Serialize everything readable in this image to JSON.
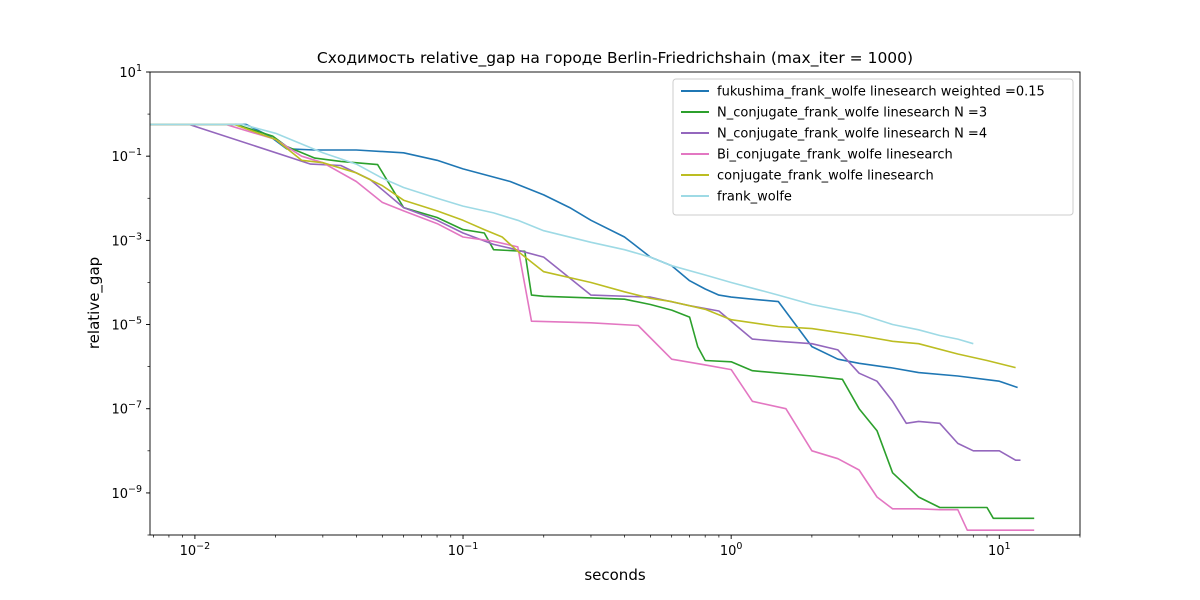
{
  "chart_data": {
    "type": "line",
    "title": "Сходимость relative_gap на городе Berlin-Friedrichshain  (max_iter = 1000)",
    "xlabel": "seconds",
    "ylabel": "relative_gap",
    "xscale": "log",
    "yscale": "log",
    "xlim": [
      0.0068,
      20
    ],
    "ylim": [
      1e-10,
      10
    ],
    "xticks": [
      {
        "value": 0.01,
        "label": "10",
        "exp": "−2"
      },
      {
        "value": 0.1,
        "label": "10",
        "exp": "−1"
      },
      {
        "value": 1,
        "label": "10",
        "exp": "0"
      },
      {
        "value": 10,
        "label": "10",
        "exp": "1"
      }
    ],
    "yticks": [
      {
        "value": 10,
        "label": "10",
        "exp": "1"
      },
      {
        "value": 0.1,
        "label": "10",
        "exp": "−1"
      },
      {
        "value": 0.001,
        "label": "10",
        "exp": "−3"
      },
      {
        "value": 1e-05,
        "label": "10",
        "exp": "−5"
      },
      {
        "value": 1e-07,
        "label": "10",
        "exp": "−7"
      },
      {
        "value": 1e-09,
        "label": "10",
        "exp": "−9"
      }
    ],
    "legend_position": "top-right",
    "grid": false,
    "series": [
      {
        "name": "fukushima_frank_wolfe linesearch weighted =0.15",
        "color": "#1f77b4",
        "points": [
          [
            0.0068,
            0.57
          ],
          [
            0.0155,
            0.57
          ],
          [
            0.019,
            0.3
          ],
          [
            0.022,
            0.15
          ],
          [
            0.028,
            0.14
          ],
          [
            0.04,
            0.14
          ],
          [
            0.06,
            0.12
          ],
          [
            0.08,
            0.08
          ],
          [
            0.1,
            0.05
          ],
          [
            0.15,
            0.025
          ],
          [
            0.2,
            0.012
          ],
          [
            0.25,
            0.006
          ],
          [
            0.3,
            0.003
          ],
          [
            0.4,
            0.0012
          ],
          [
            0.5,
            0.0004
          ],
          [
            0.6,
            0.00025
          ],
          [
            0.7,
            0.00011
          ],
          [
            0.8,
            7e-05
          ],
          [
            0.9,
            5e-05
          ],
          [
            1.0,
            4.5e-05
          ],
          [
            1.2,
            4e-05
          ],
          [
            1.5,
            3.5e-05
          ],
          [
            2.0,
            3e-06
          ],
          [
            2.5,
            1.5e-06
          ],
          [
            3.0,
            1.2e-06
          ],
          [
            4.0,
            9.3e-07
          ],
          [
            5.0,
            7.2e-07
          ],
          [
            7.0,
            6e-07
          ],
          [
            10.0,
            4.5e-07
          ],
          [
            11.7,
            3.2e-07
          ]
        ]
      },
      {
        "name": "N_conjugate_frank_wolfe linesearch N =3",
        "color": "#2ca02c",
        "points": [
          [
            0.0068,
            0.57
          ],
          [
            0.0142,
            0.57
          ],
          [
            0.0195,
            0.3
          ],
          [
            0.022,
            0.17
          ],
          [
            0.028,
            0.09
          ],
          [
            0.035,
            0.075
          ],
          [
            0.048,
            0.063
          ],
          [
            0.06,
            0.006
          ],
          [
            0.08,
            0.0035
          ],
          [
            0.1,
            0.0018
          ],
          [
            0.12,
            0.0015
          ],
          [
            0.13,
            0.0006
          ],
          [
            0.17,
            0.00055
          ],
          [
            0.18,
            5e-05
          ],
          [
            0.2,
            4.7e-05
          ],
          [
            0.3,
            4.3e-05
          ],
          [
            0.4,
            4e-05
          ],
          [
            0.5,
            3e-05
          ],
          [
            0.6,
            2.2e-05
          ],
          [
            0.7,
            1.5e-05
          ],
          [
            0.75,
            3e-06
          ],
          [
            0.8,
            1.4e-06
          ],
          [
            1.0,
            1.3e-06
          ],
          [
            1.2,
            8e-07
          ],
          [
            2.0,
            6e-07
          ],
          [
            2.6,
            5e-07
          ],
          [
            3.0,
            1e-07
          ],
          [
            3.5,
            3e-08
          ],
          [
            4.0,
            3e-09
          ],
          [
            5.0,
            8e-10
          ],
          [
            6.0,
            4.5e-10
          ],
          [
            9.0,
            4.5e-10
          ],
          [
            9.5,
            2.5e-10
          ],
          [
            13.5,
            2.5e-10
          ]
        ]
      },
      {
        "name": "N_conjugate_frank_wolfe linesearch N =4",
        "color": "#9467bd",
        "points": [
          [
            0.0068,
            0.57
          ],
          [
            0.0095,
            0.57
          ],
          [
            0.027,
            0.065
          ],
          [
            0.035,
            0.06
          ],
          [
            0.045,
            0.028
          ],
          [
            0.06,
            0.006
          ],
          [
            0.08,
            0.003
          ],
          [
            0.1,
            0.0015
          ],
          [
            0.13,
            0.0008
          ],
          [
            0.15,
            0.00065
          ],
          [
            0.2,
            0.0004
          ],
          [
            0.3,
            5e-05
          ],
          [
            0.5,
            4.5e-05
          ],
          [
            0.7,
            2.8e-05
          ],
          [
            0.9,
            2.1e-05
          ],
          [
            1.2,
            4.5e-06
          ],
          [
            1.5,
            4e-06
          ],
          [
            2.0,
            3.5e-06
          ],
          [
            2.5,
            2.5e-06
          ],
          [
            3.0,
            7e-07
          ],
          [
            3.5,
            4.5e-07
          ],
          [
            4.0,
            1.5e-07
          ],
          [
            4.5,
            4.5e-08
          ],
          [
            5.0,
            5e-08
          ],
          [
            6.0,
            4.5e-08
          ],
          [
            7.0,
            1.5e-08
          ],
          [
            8.0,
            1e-08
          ],
          [
            10.0,
            1e-08
          ],
          [
            11.5,
            6e-09
          ],
          [
            12.0,
            6e-09
          ]
        ]
      },
      {
        "name": "Bi_conjugate_frank_wolfe linesearch",
        "color": "#e377c2",
        "points": [
          [
            0.0068,
            0.57
          ],
          [
            0.013,
            0.57
          ],
          [
            0.02,
            0.25
          ],
          [
            0.025,
            0.1
          ],
          [
            0.03,
            0.07
          ],
          [
            0.04,
            0.025
          ],
          [
            0.05,
            0.008
          ],
          [
            0.06,
            0.005
          ],
          [
            0.08,
            0.0025
          ],
          [
            0.1,
            0.0012
          ],
          [
            0.13,
            0.00095
          ],
          [
            0.16,
            0.0007
          ],
          [
            0.18,
            1.2e-05
          ],
          [
            0.3,
            1.1e-05
          ],
          [
            0.45,
            9.5e-06
          ],
          [
            0.6,
            1.5e-06
          ],
          [
            0.8,
            1.1e-06
          ],
          [
            1.0,
            8.5e-07
          ],
          [
            1.2,
            1.5e-07
          ],
          [
            1.6,
            1e-07
          ],
          [
            2.0,
            1e-08
          ],
          [
            2.5,
            6.5e-09
          ],
          [
            3.0,
            3.5e-09
          ],
          [
            3.5,
            8e-10
          ],
          [
            4.0,
            4.2e-10
          ],
          [
            5.0,
            4.2e-10
          ],
          [
            6.0,
            4e-10
          ],
          [
            7.0,
            4e-10
          ],
          [
            7.6,
            1.3e-10
          ],
          [
            13.5,
            1.3e-10
          ]
        ]
      },
      {
        "name": "conjugate_frank_wolfe linesearch",
        "color": "#bcbd22",
        "points": [
          [
            0.0068,
            0.57
          ],
          [
            0.014,
            0.57
          ],
          [
            0.02,
            0.25
          ],
          [
            0.025,
            0.08
          ],
          [
            0.03,
            0.07
          ],
          [
            0.04,
            0.04
          ],
          [
            0.05,
            0.02
          ],
          [
            0.06,
            0.009
          ],
          [
            0.08,
            0.005
          ],
          [
            0.1,
            0.003
          ],
          [
            0.12,
            0.0018
          ],
          [
            0.14,
            0.0012
          ],
          [
            0.16,
            0.00055
          ],
          [
            0.2,
            0.00018
          ],
          [
            0.3,
            0.0001
          ],
          [
            0.4,
            6e-05
          ],
          [
            0.5,
            4.2e-05
          ],
          [
            0.6,
            3.5e-05
          ],
          [
            0.8,
            2.3e-05
          ],
          [
            1.0,
            1.3e-05
          ],
          [
            1.5,
            9e-06
          ],
          [
            2.0,
            8e-06
          ],
          [
            3.0,
            5.5e-06
          ],
          [
            4.0,
            4e-06
          ],
          [
            5.0,
            3.5e-06
          ],
          [
            7.0,
            2e-06
          ],
          [
            9.0,
            1.4e-06
          ],
          [
            11.5,
            9.5e-07
          ]
        ]
      },
      {
        "name": "frank_wolfe",
        "color": "#9edae5",
        "points": [
          [
            0.0068,
            0.57
          ],
          [
            0.015,
            0.57
          ],
          [
            0.02,
            0.35
          ],
          [
            0.03,
            0.12
          ],
          [
            0.04,
            0.065
          ],
          [
            0.05,
            0.03
          ],
          [
            0.06,
            0.018
          ],
          [
            0.08,
            0.01
          ],
          [
            0.1,
            0.0065
          ],
          [
            0.13,
            0.0045
          ],
          [
            0.16,
            0.003
          ],
          [
            0.2,
            0.0017
          ],
          [
            0.3,
            0.0009
          ],
          [
            0.4,
            0.0006
          ],
          [
            0.5,
            0.0004
          ],
          [
            0.6,
            0.00025
          ],
          [
            0.8,
            0.00015
          ],
          [
            1.0,
            0.0001
          ],
          [
            1.5,
            5e-05
          ],
          [
            2.0,
            3e-05
          ],
          [
            3.0,
            1.8e-05
          ],
          [
            4.0,
            1e-05
          ],
          [
            5.0,
            7.5e-06
          ],
          [
            6.0,
            5.5e-06
          ],
          [
            7.0,
            4.5e-06
          ],
          [
            8.0,
            3.5e-06
          ]
        ]
      }
    ]
  }
}
